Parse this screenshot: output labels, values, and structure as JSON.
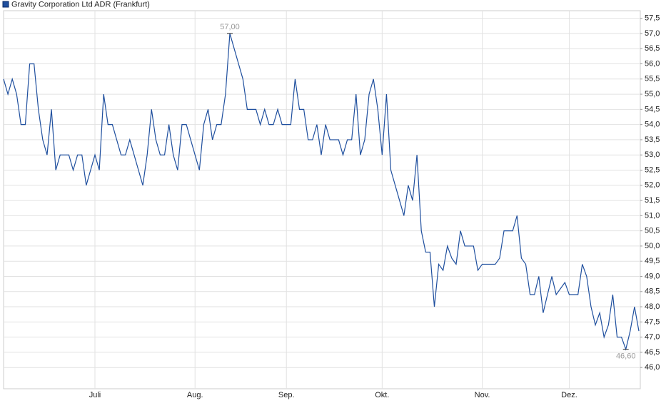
{
  "chart_data": {
    "type": "line",
    "series": [
      {
        "name": "Gravity Corporation Ltd ADR (Frankfurt)",
        "color": "#1f4f9e",
        "values": [
          55.5,
          55.0,
          55.5,
          55.0,
          54.0,
          54.0,
          56.0,
          56.0,
          54.5,
          53.5,
          53.0,
          54.5,
          52.5,
          53.0,
          53.0,
          53.0,
          52.5,
          53.0,
          53.0,
          52.0,
          52.5,
          53.0,
          52.5,
          55.0,
          54.0,
          54.0,
          53.5,
          53.0,
          53.0,
          53.5,
          53.0,
          52.5,
          52.0,
          53.0,
          54.5,
          53.5,
          53.0,
          53.0,
          54.0,
          53.0,
          52.5,
          54.0,
          54.0,
          53.5,
          53.0,
          52.5,
          54.0,
          54.5,
          53.5,
          54.0,
          54.0,
          55.0,
          57.0,
          56.5,
          56.0,
          55.5,
          54.5,
          54.5,
          54.5,
          54.0,
          54.5,
          54.0,
          54.0,
          54.5,
          54.0,
          54.0,
          54.0,
          55.5,
          54.5,
          54.5,
          53.5,
          53.5,
          54.0,
          53.0,
          54.0,
          53.5,
          53.5,
          53.5,
          53.0,
          53.5,
          53.5,
          55.0,
          53.0,
          53.5,
          55.0,
          55.5,
          54.5,
          53.0,
          55.0,
          52.5,
          52.0,
          51.5,
          51.0,
          52.0,
          51.5,
          53.0,
          50.5,
          49.8,
          49.8,
          48.0,
          49.4,
          49.2,
          50.0,
          49.6,
          49.4,
          50.5,
          50.0,
          50.0,
          50.0,
          49.2,
          49.4,
          49.4,
          49.4,
          49.4,
          49.6,
          50.5,
          50.5,
          50.5,
          51.0,
          49.6,
          49.4,
          48.4,
          48.4,
          49.0,
          47.8,
          48.4,
          49.0,
          48.4,
          48.6,
          48.8,
          48.4,
          48.4,
          48.4,
          49.4,
          49.0,
          48.0,
          47.4,
          47.8,
          47.0,
          47.4,
          48.4,
          47.0,
          47.0,
          46.6,
          47.2,
          48.0,
          47.2
        ],
        "value_labels": [
          null,
          null,
          null,
          null,
          null,
          null,
          null,
          null,
          null,
          null,
          null,
          null,
          null,
          null,
          null,
          null,
          null,
          null,
          null,
          null,
          null,
          null,
          null,
          null,
          null,
          null,
          null,
          null,
          null,
          null,
          null,
          null,
          null,
          null,
          null,
          null,
          null,
          null,
          null,
          null,
          null,
          null,
          null,
          null,
          null,
          null,
          null,
          null,
          null,
          null,
          null,
          null,
          "57,00",
          null,
          null,
          null,
          null,
          null,
          null,
          null,
          null,
          null,
          null,
          null,
          null,
          null,
          null,
          null,
          null,
          null,
          null,
          null,
          null,
          null,
          null,
          null,
          null,
          null,
          null,
          null,
          null,
          null,
          null,
          null,
          null,
          null,
          null,
          null,
          null,
          null,
          null,
          null,
          null,
          null,
          null,
          null,
          null,
          null,
          null,
          null,
          null,
          null,
          null,
          null,
          null,
          null,
          null,
          null,
          null,
          null,
          null,
          null,
          null,
          null,
          null,
          null,
          null,
          null,
          null,
          null,
          null,
          null,
          null,
          null,
          null,
          null,
          null,
          null,
          null,
          null,
          null,
          null,
          null,
          null,
          null,
          null,
          null,
          null,
          null,
          null,
          null,
          null,
          null,
          "46,60",
          null,
          null,
          null
        ]
      }
    ],
    "categories": [
      null,
      null,
      null,
      null,
      null,
      null,
      null,
      null,
      null,
      null,
      null,
      null,
      null,
      null,
      null,
      null,
      null,
      null,
      null,
      null,
      null,
      "Juli",
      null,
      null,
      null,
      null,
      null,
      null,
      null,
      null,
      null,
      null,
      null,
      null,
      null,
      null,
      null,
      null,
      null,
      null,
      null,
      null,
      null,
      null,
      "Aug.",
      null,
      null,
      null,
      null,
      null,
      null,
      null,
      null,
      null,
      null,
      null,
      null,
      null,
      null,
      null,
      null,
      null,
      null,
      null,
      null,
      "Sep.",
      null,
      null,
      null,
      null,
      null,
      null,
      null,
      null,
      null,
      null,
      null,
      null,
      null,
      null,
      null,
      null,
      null,
      null,
      null,
      null,
      null,
      "Okt.",
      null,
      null,
      null,
      null,
      null,
      null,
      null,
      null,
      null,
      null,
      null,
      null,
      null,
      null,
      null,
      null,
      null,
      null,
      null,
      null,
      null,
      null,
      "Nov.",
      null,
      null,
      null,
      null,
      null,
      null,
      null,
      null,
      null,
      null,
      null,
      null,
      null,
      null,
      null,
      null,
      null,
      null,
      null,
      "Dez.",
      null,
      null,
      null,
      null,
      null,
      null,
      null,
      null,
      null,
      null,
      null,
      null,
      null,
      null,
      null,
      null
    ],
    "ylim": [
      45.3,
      57.75
    ],
    "yticks": [
      {
        "value": 46,
        "label": "46,0"
      },
      {
        "value": 46.5,
        "label": "46,5"
      },
      {
        "value": 47,
        "label": "47,0"
      },
      {
        "value": 47.5,
        "label": "47,5"
      },
      {
        "value": 48,
        "label": "48,0"
      },
      {
        "value": 48.5,
        "label": "48,5"
      },
      {
        "value": 49,
        "label": "49,0"
      },
      {
        "value": 49.5,
        "label": "49,5"
      },
      {
        "value": 50,
        "label": "50,0"
      },
      {
        "value": 50.5,
        "label": "50,5"
      },
      {
        "value": 51,
        "label": "51,0"
      },
      {
        "value": 51.5,
        "label": "51,5"
      },
      {
        "value": 52,
        "label": "52,0"
      },
      {
        "value": 52.5,
        "label": "52,5"
      },
      {
        "value": 53,
        "label": "53,0"
      },
      {
        "value": 53.5,
        "label": "53,5"
      },
      {
        "value": 54,
        "label": "54,0"
      },
      {
        "value": 54.5,
        "label": "54,5"
      },
      {
        "value": 55,
        "label": "55,0"
      },
      {
        "value": 55.5,
        "label": "55,5"
      },
      {
        "value": 56,
        "label": "56,0"
      },
      {
        "value": 56.5,
        "label": "56,5"
      },
      {
        "value": 57,
        "label": "57,0"
      },
      {
        "value": 57.5,
        "label": "57,5"
      }
    ],
    "grid": true
  }
}
